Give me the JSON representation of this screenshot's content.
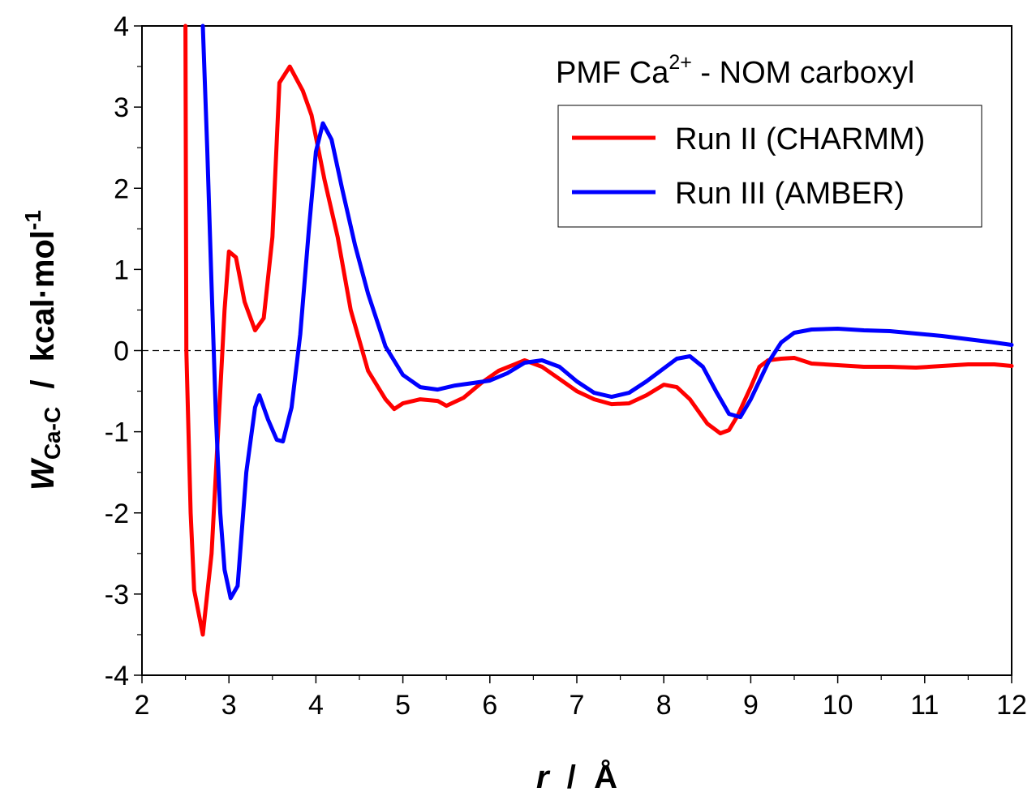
{
  "chart_data": {
    "type": "line",
    "title": "PMF Ca",
    "title_sup": "2+",
    "title_rest": " - NOM carboxyl",
    "xlabel": {
      "var": "r",
      "sep": "  /  ",
      "unit": "Å"
    },
    "ylabel": {
      "var": "W",
      "sub": "Ca-C",
      "sep": "  /  ",
      "unit": "kcal·mol",
      "unit_sup": "-1"
    },
    "xlim": [
      2,
      12
    ],
    "ylim": [
      -4,
      4
    ],
    "xticks": [
      "2",
      "3",
      "4",
      "5",
      "6",
      "7",
      "8",
      "9",
      "10",
      "11",
      "12"
    ],
    "yticks": [
      "-4",
      "-3",
      "-2",
      "-1",
      "0",
      "1",
      "2",
      "3",
      "4"
    ],
    "zero_line": "dashed",
    "grid": false,
    "legend": "top-right",
    "series": [
      {
        "name": "Run II (CHARMM)",
        "color": "#ff0000",
        "points": [
          [
            2.5,
            4.0
          ],
          [
            2.51,
            0.0
          ],
          [
            2.53,
            -0.8
          ],
          [
            2.56,
            -2.0
          ],
          [
            2.6,
            -2.95
          ],
          [
            2.7,
            -3.5
          ],
          [
            2.8,
            -2.5
          ],
          [
            2.9,
            -0.5
          ],
          [
            2.95,
            0.5
          ],
          [
            3.0,
            1.22
          ],
          [
            3.08,
            1.15
          ],
          [
            3.18,
            0.6
          ],
          [
            3.3,
            0.25
          ],
          [
            3.4,
            0.4
          ],
          [
            3.5,
            1.4
          ],
          [
            3.58,
            3.3
          ],
          [
            3.7,
            3.5
          ],
          [
            3.85,
            3.2
          ],
          [
            3.95,
            2.9
          ],
          [
            4.1,
            2.1
          ],
          [
            4.25,
            1.4
          ],
          [
            4.4,
            0.5
          ],
          [
            4.6,
            -0.25
          ],
          [
            4.8,
            -0.6
          ],
          [
            4.9,
            -0.72
          ],
          [
            5.0,
            -0.65
          ],
          [
            5.2,
            -0.6
          ],
          [
            5.4,
            -0.62
          ],
          [
            5.5,
            -0.68
          ],
          [
            5.7,
            -0.58
          ],
          [
            5.9,
            -0.4
          ],
          [
            6.1,
            -0.25
          ],
          [
            6.4,
            -0.12
          ],
          [
            6.6,
            -0.2
          ],
          [
            6.8,
            -0.35
          ],
          [
            7.0,
            -0.5
          ],
          [
            7.2,
            -0.6
          ],
          [
            7.4,
            -0.66
          ],
          [
            7.6,
            -0.65
          ],
          [
            7.8,
            -0.55
          ],
          [
            8.0,
            -0.42
          ],
          [
            8.15,
            -0.45
          ],
          [
            8.3,
            -0.6
          ],
          [
            8.5,
            -0.9
          ],
          [
            8.65,
            -1.02
          ],
          [
            8.75,
            -0.98
          ],
          [
            8.85,
            -0.8
          ],
          [
            9.0,
            -0.45
          ],
          [
            9.1,
            -0.2
          ],
          [
            9.2,
            -0.12
          ],
          [
            9.35,
            -0.1
          ],
          [
            9.5,
            -0.09
          ],
          [
            9.7,
            -0.16
          ],
          [
            10.0,
            -0.18
          ],
          [
            10.3,
            -0.2
          ],
          [
            10.6,
            -0.2
          ],
          [
            10.9,
            -0.21
          ],
          [
            11.2,
            -0.19
          ],
          [
            11.5,
            -0.17
          ],
          [
            11.8,
            -0.17
          ],
          [
            12.0,
            -0.19
          ]
        ]
      },
      {
        "name": "Run III (AMBER)",
        "color": "#0000ff",
        "points": [
          [
            2.7,
            4.0
          ],
          [
            2.75,
            2.5
          ],
          [
            2.8,
            0.8
          ],
          [
            2.85,
            -0.8
          ],
          [
            2.9,
            -2.0
          ],
          [
            2.95,
            -2.7
          ],
          [
            3.02,
            -3.05
          ],
          [
            3.1,
            -2.9
          ],
          [
            3.2,
            -1.5
          ],
          [
            3.3,
            -0.7
          ],
          [
            3.35,
            -0.55
          ],
          [
            3.45,
            -0.85
          ],
          [
            3.55,
            -1.1
          ],
          [
            3.62,
            -1.12
          ],
          [
            3.72,
            -0.7
          ],
          [
            3.82,
            0.2
          ],
          [
            3.92,
            1.5
          ],
          [
            4.0,
            2.45
          ],
          [
            4.08,
            2.8
          ],
          [
            4.18,
            2.6
          ],
          [
            4.3,
            2.0
          ],
          [
            4.45,
            1.3
          ],
          [
            4.6,
            0.7
          ],
          [
            4.8,
            0.05
          ],
          [
            5.0,
            -0.3
          ],
          [
            5.2,
            -0.45
          ],
          [
            5.4,
            -0.48
          ],
          [
            5.6,
            -0.43
          ],
          [
            5.8,
            -0.4
          ],
          [
            6.0,
            -0.37
          ],
          [
            6.2,
            -0.28
          ],
          [
            6.4,
            -0.15
          ],
          [
            6.6,
            -0.12
          ],
          [
            6.8,
            -0.2
          ],
          [
            7.0,
            -0.38
          ],
          [
            7.2,
            -0.52
          ],
          [
            7.4,
            -0.57
          ],
          [
            7.6,
            -0.52
          ],
          [
            7.8,
            -0.38
          ],
          [
            8.0,
            -0.22
          ],
          [
            8.15,
            -0.1
          ],
          [
            8.3,
            -0.07
          ],
          [
            8.45,
            -0.2
          ],
          [
            8.6,
            -0.5
          ],
          [
            8.75,
            -0.78
          ],
          [
            8.88,
            -0.82
          ],
          [
            9.0,
            -0.6
          ],
          [
            9.2,
            -0.15
          ],
          [
            9.35,
            0.1
          ],
          [
            9.5,
            0.22
          ],
          [
            9.7,
            0.26
          ],
          [
            10.0,
            0.27
          ],
          [
            10.3,
            0.25
          ],
          [
            10.6,
            0.24
          ],
          [
            10.9,
            0.21
          ],
          [
            11.2,
            0.18
          ],
          [
            11.5,
            0.14
          ],
          [
            11.8,
            0.1
          ],
          [
            12.0,
            0.07
          ]
        ]
      }
    ]
  }
}
